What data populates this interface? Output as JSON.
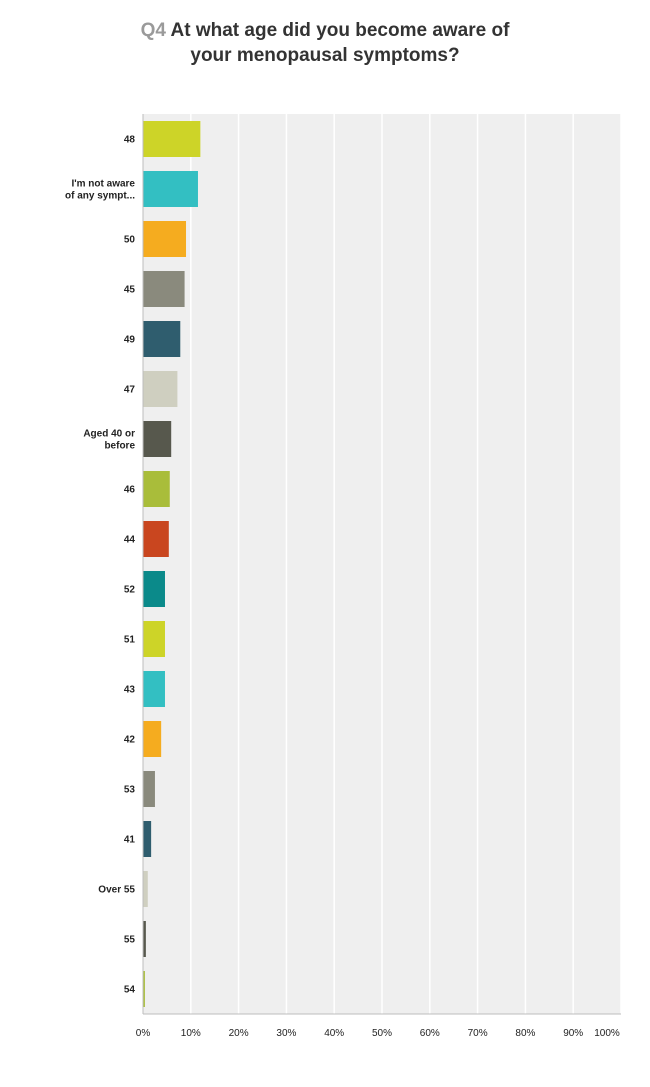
{
  "header": {
    "question_number": "Q4",
    "title_line1": "At what age did you become aware of",
    "title_line2": "your menopausal symptoms?"
  },
  "chart_data": {
    "type": "bar",
    "orientation": "horizontal",
    "categories": [
      [
        "48"
      ],
      [
        "I'm not aware",
        "of any sympt..."
      ],
      [
        "50"
      ],
      [
        "45"
      ],
      [
        "49"
      ],
      [
        "47"
      ],
      [
        "Aged 40 or",
        "before"
      ],
      [
        "46"
      ],
      [
        "44"
      ],
      [
        "52"
      ],
      [
        "51"
      ],
      [
        "43"
      ],
      [
        "42"
      ],
      [
        "53"
      ],
      [
        "41"
      ],
      [
        "Over 55"
      ],
      [
        "55"
      ],
      [
        "54"
      ]
    ],
    "values": [
      12,
      11.5,
      9,
      8.7,
      7.8,
      7.2,
      5.9,
      5.6,
      5.4,
      4.6,
      4.6,
      4.6,
      3.8,
      2.5,
      1.7,
      1.0,
      0.6,
      0.4
    ],
    "colors": [
      "#cdd428",
      "#33bfc2",
      "#f5ac1f",
      "#8a8a7d",
      "#2f5d6e",
      "#cfcfc0",
      "#57584d",
      "#a9bd3a",
      "#c9461f",
      "#0b8a8a",
      "#cdd428",
      "#33bfc2",
      "#f5ac1f",
      "#8a8a7d",
      "#2f5d6e",
      "#cfcfc0",
      "#57584d",
      "#a9bd3a"
    ],
    "x_ticks": [
      "0%",
      "10%",
      "20%",
      "30%",
      "40%",
      "50%",
      "60%",
      "70%",
      "80%",
      "90%",
      "100%"
    ],
    "xlim": [
      0,
      100
    ],
    "grid": true,
    "legend": "none"
  }
}
